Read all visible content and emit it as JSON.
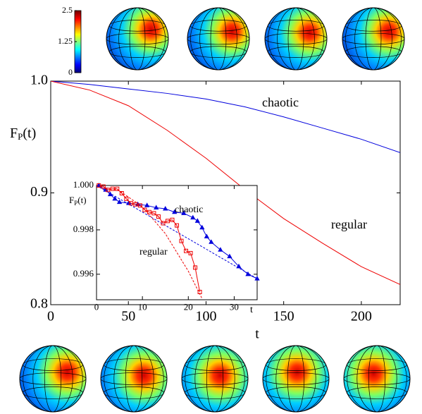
{
  "chart_data": [
    {
      "type": "line",
      "ylabel": {
        "main": "F",
        "sub": "P",
        "tail": "(t)"
      },
      "xlabel": "t",
      "xlim": [
        0,
        225
      ],
      "ylim": [
        0.8,
        1.0
      ],
      "xticks": [
        0,
        50,
        100,
        150,
        200
      ],
      "yticks": [
        0.8,
        0.9,
        {
          "value": 1,
          "label": "1.0"
        }
      ],
      "series": [
        {
          "name": "chaotic",
          "color": "#0000dd",
          "x": [
            0,
            25,
            50,
            75,
            100,
            125,
            150,
            175,
            200,
            225
          ],
          "values": [
            1.0,
            0.997,
            0.993,
            0.989,
            0.984,
            0.977,
            0.968,
            0.958,
            0.948,
            0.936
          ]
        },
        {
          "name": "regular",
          "color": "#ee0000",
          "x": [
            0,
            25,
            50,
            75,
            100,
            125,
            150,
            175,
            200,
            225
          ],
          "values": [
            1.0,
            0.992,
            0.978,
            0.956,
            0.931,
            0.903,
            0.877,
            0.855,
            0.834,
            0.818
          ]
        }
      ]
    },
    {
      "type": "scatter-line",
      "ylabel": {
        "main": "F",
        "sub": "P",
        "tail": "(t)"
      },
      "xlabel": "t",
      "xlim": [
        0,
        35
      ],
      "ylim": [
        0.99485,
        1.0
      ],
      "xticks": [
        0,
        10,
        20,
        30
      ],
      "yticks": [
        0.996,
        0.998,
        {
          "value": 1,
          "label": "1.000"
        }
      ],
      "series": [
        {
          "name": "chaotic",
          "color": "#0000dd",
          "marker": "triangle",
          "x": [
            0.5,
            2,
            3,
            4,
            5,
            7,
            9,
            11,
            13,
            15,
            17,
            19,
            21,
            22,
            23,
            24,
            25,
            27,
            29,
            31,
            33,
            35
          ],
          "values": [
            1.0,
            0.9998,
            0.9996,
            0.9994,
            0.99925,
            0.9992,
            0.99915,
            0.9991,
            0.999,
            0.99895,
            0.9988,
            0.99875,
            0.99855,
            0.9984,
            0.9981,
            0.9977,
            0.99745,
            0.9971,
            0.9968,
            0.99635,
            0.996,
            0.9958
          ]
        },
        {
          "name": "regular",
          "color": "#ee0000",
          "marker": "square",
          "x": [
            0.5,
            1.5,
            2.5,
            3.5,
            4.5,
            5.5,
            6.5,
            7.5,
            8.5,
            9.5,
            10.5,
            11.5,
            12.5,
            13.5,
            14.5,
            15.5,
            16.5,
            17.5,
            18.5,
            19.5,
            20.5,
            21.5,
            22.5
          ],
          "values": [
            1.0,
            0.99995,
            0.9998,
            0.99985,
            0.99985,
            0.99965,
            0.9994,
            0.9992,
            0.99915,
            0.9991,
            0.9989,
            0.9988,
            0.99875,
            0.9986,
            0.9983,
            0.9984,
            0.99845,
            0.9982,
            0.9975,
            0.99705,
            0.99695,
            0.9963,
            0.9952
          ]
        }
      ],
      "fits": [
        {
          "color": "#0000dd",
          "x": [
            0,
            35
          ],
          "values": [
            1.0,
            0.9958
          ]
        },
        {
          "color": "#ee0000",
          "x": [
            0,
            5,
            10,
            15,
            20,
            23
          ],
          "values": [
            1.0,
            0.99976,
            0.99904,
            0.99783,
            0.99614,
            0.9949
          ]
        }
      ]
    },
    {
      "type": "colorbar",
      "colormap": "jet",
      "ylim": [
        0,
        2.5
      ],
      "yticks": [
        0,
        1.25,
        2.5
      ]
    }
  ]
}
